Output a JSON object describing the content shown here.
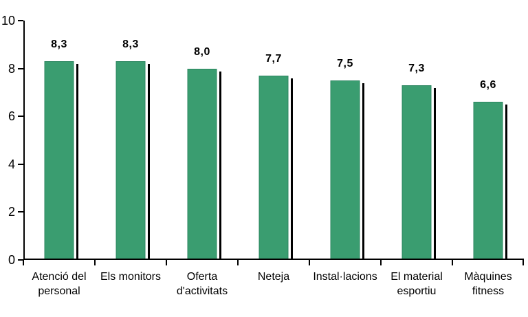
{
  "chart_data": {
    "type": "bar",
    "title": "",
    "xlabel": "",
    "ylabel": "",
    "categories": [
      "Atenció del\npersonal",
      "Els monitors",
      "Oferta\nd'activitats",
      "Neteja",
      "Instal·lacions",
      "El material\nesportiu",
      "Màquines\nfitness"
    ],
    "values": [
      8.3,
      8.3,
      8.0,
      7.7,
      7.5,
      7.3,
      6.6
    ],
    "value_labels": [
      "8,3",
      "8,3",
      "8,0",
      "7,7",
      "7,5",
      "7,3",
      "6,6"
    ],
    "ylim": [
      0,
      10
    ],
    "yticks": [
      0,
      2,
      4,
      6,
      8,
      10
    ],
    "grid": false,
    "legend": null,
    "bar_color": "#3a9d70",
    "bar_border_color": "#2c8660",
    "shadow_color": "#000000",
    "axis_color": "#000000",
    "text_color": "#000000",
    "background_color": "#ffffff"
  }
}
